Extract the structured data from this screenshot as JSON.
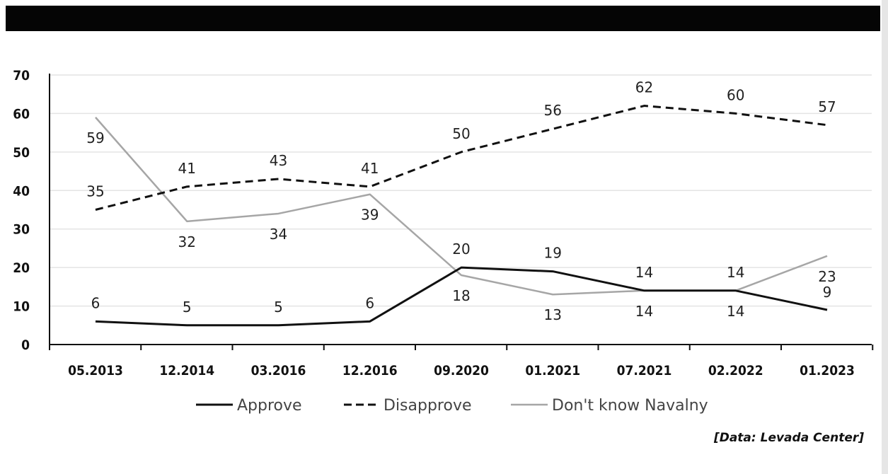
{
  "chart_data": {
    "type": "line",
    "categories": [
      "05.2013",
      "12.2014",
      "03.2016",
      "12.2016",
      "09.2020",
      "01.2021",
      "07.2021",
      "02.2022",
      "01.2023"
    ],
    "ylim": [
      0,
      70
    ],
    "yticks": [
      0,
      10,
      20,
      30,
      40,
      50,
      60,
      70
    ],
    "grid": "horizontal",
    "legend_position": "bottom",
    "series": [
      {
        "name": "Approve",
        "values": [
          6,
          5,
          5,
          6,
          20,
          19,
          14,
          14,
          9
        ],
        "color": "#111111",
        "style": "solid"
      },
      {
        "name": "Disapprove",
        "values": [
          35,
          41,
          43,
          41,
          50,
          56,
          62,
          60,
          57
        ],
        "color": "#111111",
        "style": "dashed"
      },
      {
        "name": "Don't know Navalny",
        "values": [
          59,
          32,
          34,
          39,
          18,
          13,
          14,
          14,
          23
        ],
        "color": "#a6a6a6",
        "style": "solid"
      }
    ]
  },
  "source": "[Data: Levada Center]"
}
